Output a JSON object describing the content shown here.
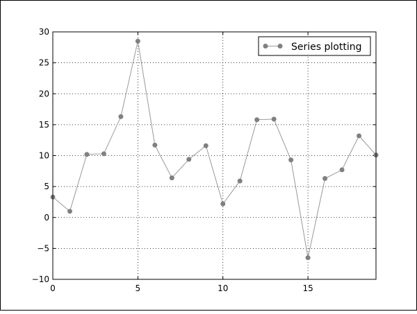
{
  "chart_data": {
    "type": "line",
    "title": "",
    "xlabel": "",
    "ylabel": "",
    "xlim": [
      0,
      19
    ],
    "ylim": [
      -10,
      30
    ],
    "xticks": [
      0,
      5,
      10,
      15
    ],
    "yticks": [
      -10,
      -5,
      0,
      5,
      10,
      15,
      20,
      25,
      30
    ],
    "xtick_labels": [
      "0",
      "5",
      "10",
      "15"
    ],
    "ytick_labels": [
      "−10",
      "−5",
      "0",
      "5",
      "10",
      "15",
      "20",
      "25",
      "30"
    ],
    "grid": true,
    "legend_position": "top-right",
    "series": [
      {
        "name": "Series plotting",
        "color": "#808080",
        "marker": "circle",
        "x": [
          0,
          1,
          2,
          3,
          4,
          5,
          6,
          7,
          8,
          9,
          10,
          11,
          12,
          13,
          14,
          15,
          16,
          17,
          18,
          19
        ],
        "y": [
          3.3,
          1.0,
          10.2,
          10.3,
          16.3,
          28.5,
          11.7,
          6.4,
          9.4,
          11.6,
          2.2,
          5.9,
          15.8,
          15.9,
          9.3,
          -6.5,
          6.3,
          7.7,
          13.2,
          10.1
        ]
      }
    ]
  }
}
